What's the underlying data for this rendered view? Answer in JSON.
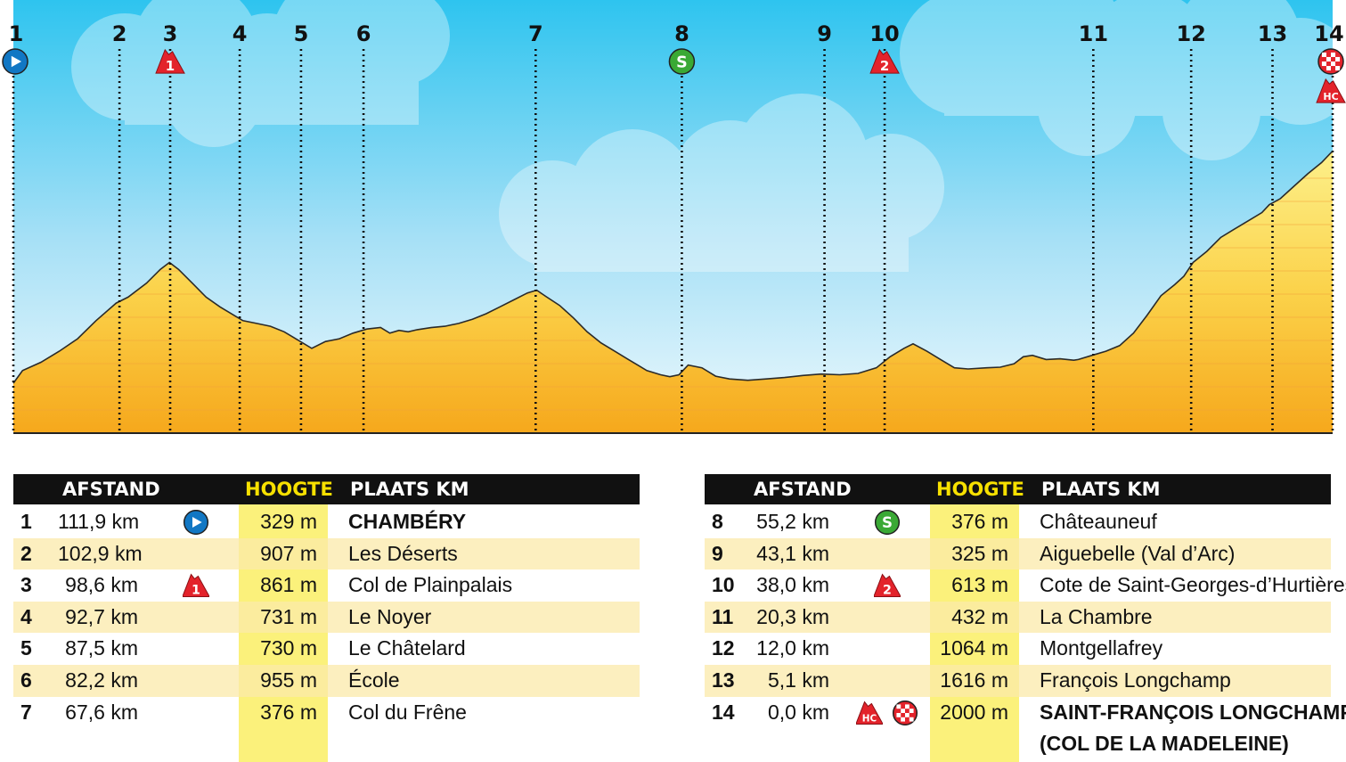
{
  "chart_data": {
    "type": "area",
    "x_unit": "km",
    "y_unit": "m",
    "ylim": [
      0,
      2100
    ],
    "profile": [
      [
        0.0,
        329
      ],
      [
        1.0,
        420
      ],
      [
        3.0,
        480
      ],
      [
        5.0,
        560
      ],
      [
        7.0,
        650
      ],
      [
        9.0,
        780
      ],
      [
        11.2,
        907
      ],
      [
        12.5,
        950
      ],
      [
        14.5,
        1050
      ],
      [
        16.0,
        1150
      ],
      [
        17.0,
        1200
      ],
      [
        18.0,
        1150
      ],
      [
        19.5,
        1050
      ],
      [
        21.0,
        950
      ],
      [
        22.5,
        880
      ],
      [
        24.0,
        820
      ],
      [
        25.0,
        780
      ],
      [
        26.5,
        760
      ],
      [
        28.0,
        740
      ],
      [
        29.5,
        700
      ],
      [
        31.0,
        640
      ],
      [
        32.5,
        580
      ],
      [
        34.0,
        630
      ],
      [
        35.5,
        650
      ],
      [
        37.0,
        690
      ],
      [
        38.5,
        720
      ],
      [
        40.0,
        731
      ],
      [
        41.0,
        690
      ],
      [
        42.0,
        710
      ],
      [
        43.0,
        700
      ],
      [
        44.0,
        715
      ],
      [
        45.5,
        730
      ],
      [
        47.0,
        740
      ],
      [
        48.5,
        760
      ],
      [
        50.0,
        790
      ],
      [
        51.5,
        830
      ],
      [
        53.0,
        880
      ],
      [
        54.5,
        930
      ],
      [
        56.0,
        980
      ],
      [
        57.0,
        1000
      ],
      [
        58.0,
        955
      ],
      [
        59.5,
        890
      ],
      [
        61.0,
        800
      ],
      [
        62.5,
        700
      ],
      [
        64.0,
        620
      ],
      [
        65.5,
        560
      ],
      [
        67.0,
        500
      ],
      [
        68.0,
        460
      ],
      [
        69.0,
        420
      ],
      [
        70.5,
        390
      ],
      [
        71.5,
        376
      ],
      [
        72.5,
        390
      ],
      [
        73.5,
        460
      ],
      [
        75.0,
        440
      ],
      [
        76.5,
        380
      ],
      [
        78.0,
        360
      ],
      [
        80.0,
        350
      ],
      [
        82.0,
        360
      ],
      [
        84.0,
        370
      ],
      [
        86.0,
        385
      ],
      [
        88.0,
        395
      ],
      [
        90.0,
        390
      ],
      [
        92.0,
        400
      ],
      [
        94.0,
        440
      ],
      [
        95.5,
        520
      ],
      [
        97.0,
        580
      ],
      [
        98.0,
        613
      ],
      [
        99.5,
        560
      ],
      [
        101.0,
        500
      ],
      [
        102.5,
        440
      ],
      [
        104.0,
        432
      ],
      [
        106.0,
        440
      ],
      [
        107.5,
        445
      ],
      [
        109.0,
        470
      ],
      [
        110.0,
        520
      ],
      [
        111.0,
        530
      ],
      [
        112.5,
        500
      ],
      [
        114.0,
        505
      ],
      [
        115.5,
        495
      ],
      [
        116.0,
        500
      ],
      [
        117.5,
        530
      ],
      [
        119.0,
        560
      ],
      [
        120.5,
        600
      ],
      [
        122.0,
        690
      ],
      [
        123.5,
        820
      ],
      [
        125.0,
        960
      ],
      [
        126.5,
        1040
      ],
      [
        127.5,
        1100
      ],
      [
        128.5,
        1200
      ],
      [
        130.0,
        1280
      ],
      [
        131.5,
        1380
      ],
      [
        133.0,
        1440
      ],
      [
        134.5,
        1500
      ],
      [
        136.0,
        1560
      ],
      [
        136.8,
        1616
      ],
      [
        138.0,
        1660
      ],
      [
        139.5,
        1750
      ],
      [
        141.0,
        1840
      ],
      [
        142.5,
        1920
      ],
      [
        143.5,
        1990
      ],
      [
        143.7,
        2000
      ]
    ],
    "points": [
      {
        "n": "1",
        "dist": "111,9 km",
        "km_done": 0.0,
        "alt": 329,
        "alt_label": "329 m",
        "place": "CHAMBÉRY",
        "bold": true,
        "icons": [
          "start"
        ]
      },
      {
        "n": "2",
        "dist": "102,9 km",
        "km_done": 9.0,
        "alt": 907,
        "alt_label": "907 m",
        "place": "Les Déserts",
        "bold": false,
        "icons": []
      },
      {
        "n": "3",
        "dist": "98,6 km",
        "km_done": 13.3,
        "alt": 861,
        "alt_label": "861 m",
        "place": "Col de Plainpalais",
        "bold": false,
        "icons": [
          "cat1"
        ]
      },
      {
        "n": "4",
        "dist": "92,7 km",
        "km_done": 19.2,
        "alt": 731,
        "alt_label": "731 m",
        "place": "Le Noyer",
        "bold": false,
        "icons": []
      },
      {
        "n": "5",
        "dist": "87,5 km",
        "km_done": 24.4,
        "alt": 730,
        "alt_label": "730 m",
        "place": "Le Châtelard",
        "bold": false,
        "icons": []
      },
      {
        "n": "6",
        "dist": "82,2 km",
        "km_done": 29.7,
        "alt": 955,
        "alt_label": "955 m",
        "place": "École",
        "bold": false,
        "icons": []
      },
      {
        "n": "7",
        "dist": "67,6 km",
        "km_done": 44.3,
        "alt": 376,
        "alt_label": "376 m",
        "place": "Col du Frêne",
        "bold": false,
        "icons": []
      },
      {
        "n": "8",
        "dist": "55,2 km",
        "km_done": 56.7,
        "alt": 376,
        "alt_label": "376 m",
        "place": "Châteauneuf",
        "bold": false,
        "icons": [
          "sprint"
        ]
      },
      {
        "n": "9",
        "dist": "43,1 km",
        "km_done": 68.8,
        "alt": 325,
        "alt_label": "325 m",
        "place": "Aiguebelle (Val d’Arc)",
        "bold": false,
        "icons": []
      },
      {
        "n": "10",
        "dist": "38,0 km",
        "km_done": 73.9,
        "alt": 613,
        "alt_label": "613 m",
        "place": "Cote de Saint-Georges-d’Hurtières",
        "bold": false,
        "icons": [
          "cat2"
        ]
      },
      {
        "n": "11",
        "dist": "20,3 km",
        "km_done": 91.6,
        "alt": 432,
        "alt_label": "432 m",
        "place": "La Chambre",
        "bold": false,
        "icons": []
      },
      {
        "n": "12",
        "dist": "12,0 km",
        "km_done": 99.9,
        "alt": 1064,
        "alt_label": "1064 m",
        "place": "Montgellafrey",
        "bold": false,
        "icons": []
      },
      {
        "n": "13",
        "dist": "5,1 km",
        "km_done": 106.8,
        "alt": 1616,
        "alt_label": "1616 m",
        "place": "François Longchamp",
        "bold": false,
        "icons": []
      },
      {
        "n": "14",
        "dist": "0,0 km",
        "km_done": 111.9,
        "alt": 2000,
        "alt_label": "2000 m",
        "place": "SAINT-FRANÇOIS LONGCHAMP",
        "place2": "(COL DE LA MADELEINE)",
        "bold": true,
        "icons": [
          "hc",
          "finish"
        ]
      }
    ]
  },
  "table": {
    "headers": {
      "dist": "AFSTAND",
      "alt": "HOOGTE",
      "place": "PLAATS KM"
    }
  },
  "icons": {
    "start": "start-play-icon",
    "cat1": "category-1-climb-icon",
    "cat2": "category-2-climb-icon",
    "hc": "hors-categorie-climb-icon",
    "sprint": "sprint-s-icon",
    "finish": "finish-checkered-icon"
  },
  "icon_text": {
    "cat1": "1",
    "cat2": "2",
    "hc": "HC",
    "sprint": "S"
  },
  "colors": {
    "sky_top": "#2ec4ef",
    "sky_bottom": "#e8f6fc",
    "fill_top": "#fbe772",
    "fill_bottom": "#f6a81c",
    "climb_red": "#e3232b",
    "sprint_green": "#3aa935",
    "start_blue": "#1177c4",
    "highlight_yellow": "#fbf17b"
  }
}
